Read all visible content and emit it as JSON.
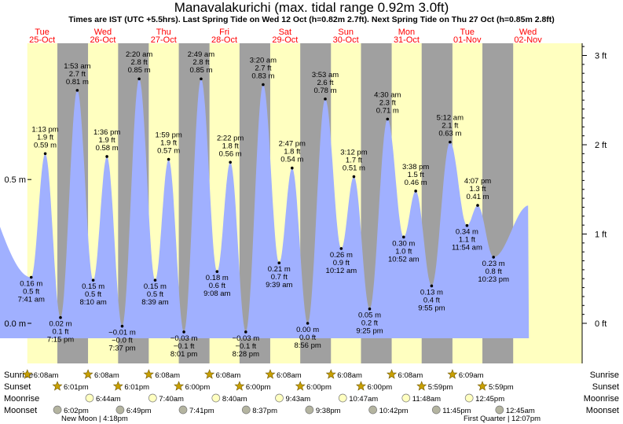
{
  "title": "Manavalakurichi (max. tidal range 0.92m 3.0ft)",
  "subtitle": "Times are IST (UTC +5.5hrs). Last Spring Tide on Wed 12 Oct (h=0.82m 2.7ft). Next Spring Tide on Thu 27 Oct (h=0.85m 2.8ft)",
  "chart_data": {
    "type": "area",
    "title": "Manavalakurichi (max. tidal range 0.92m 3.0ft)",
    "y_left_ticks": [
      {
        "value": 0.0,
        "label": "0.0 m"
      },
      {
        "value": 0.5,
        "label": "0.5 m"
      }
    ],
    "y_right_ticks": [
      {
        "value": 0,
        "label": "0 ft"
      },
      {
        "value": 1,
        "label": "1 ft"
      },
      {
        "value": 2,
        "label": "2 ft"
      },
      {
        "value": 3,
        "label": "3 ft"
      }
    ],
    "days": [
      {
        "dow": "Tue",
        "date": "25-Oct"
      },
      {
        "dow": "Wed",
        "date": "26-Oct"
      },
      {
        "dow": "Thu",
        "date": "27-Oct"
      },
      {
        "dow": "Fri",
        "date": "28-Oct"
      },
      {
        "dow": "Sat",
        "date": "29-Oct"
      },
      {
        "dow": "Sun",
        "date": "30-Oct"
      },
      {
        "dow": "Mon",
        "date": "31-Oct"
      },
      {
        "dow": "Tue",
        "date": "01-Nov"
      },
      {
        "dow": "Wed",
        "date": "02-Nov"
      }
    ],
    "tides": [
      {
        "day": 0,
        "hour": 7.683,
        "time": "7:41 am",
        "m": 0.16,
        "mt": "0.16 m",
        "ft": "0.5 ft",
        "type": "low"
      },
      {
        "day": 0,
        "hour": 13.217,
        "time": "1:13 pm",
        "m": 0.59,
        "mt": "0.59 m",
        "ft": "1.9 ft",
        "type": "high"
      },
      {
        "day": 0,
        "hour": 19.25,
        "time": "7:15 pm",
        "m": 0.02,
        "mt": "0.02 m",
        "ft": "0.1 ft",
        "type": "low"
      },
      {
        "day": 1,
        "hour": 1.883,
        "time": "1:53 am",
        "m": 0.81,
        "mt": "0.81 m",
        "ft": "2.7 ft",
        "type": "high"
      },
      {
        "day": 1,
        "hour": 8.167,
        "time": "8:10 am",
        "m": 0.15,
        "mt": "0.15 m",
        "ft": "0.5 ft",
        "type": "low"
      },
      {
        "day": 1,
        "hour": 13.6,
        "time": "1:36 pm",
        "m": 0.58,
        "mt": "0.58 m",
        "ft": "1.9 ft",
        "type": "high"
      },
      {
        "day": 1,
        "hour": 19.617,
        "time": "7:37 pm",
        "m": -0.01,
        "mt": "−0.01 m",
        "ft": "−0.0 ft",
        "type": "low"
      },
      {
        "day": 2,
        "hour": 2.333,
        "time": "2:20 am",
        "m": 0.85,
        "mt": "0.85 m",
        "ft": "2.8 ft",
        "type": "high"
      },
      {
        "day": 2,
        "hour": 8.65,
        "time": "8:39 am",
        "m": 0.15,
        "mt": "0.15 m",
        "ft": "0.5 ft",
        "type": "low"
      },
      {
        "day": 2,
        "hour": 13.983,
        "time": "1:59 pm",
        "m": 0.57,
        "mt": "0.57 m",
        "ft": "1.9 ft",
        "type": "high"
      },
      {
        "day": 2,
        "hour": 20.017,
        "time": "8:01 pm",
        "m": -0.03,
        "mt": "−0.03 m",
        "ft": "−0.1 ft",
        "type": "low"
      },
      {
        "day": 3,
        "hour": 2.817,
        "time": "2:49 am",
        "m": 0.85,
        "mt": "0.85 m",
        "ft": "2.8 ft",
        "type": "high"
      },
      {
        "day": 3,
        "hour": 9.133,
        "time": "9:08 am",
        "m": 0.18,
        "mt": "0.18 m",
        "ft": "0.6 ft",
        "type": "low"
      },
      {
        "day": 3,
        "hour": 14.367,
        "time": "2:22 pm",
        "m": 0.56,
        "mt": "0.56 m",
        "ft": "1.8 ft",
        "type": "high"
      },
      {
        "day": 3,
        "hour": 20.467,
        "time": "8:28 pm",
        "m": -0.03,
        "mt": "−0.03 m",
        "ft": "−0.1 ft",
        "type": "low"
      },
      {
        "day": 4,
        "hour": 3.333,
        "time": "3:20 am",
        "m": 0.83,
        "mt": "0.83 m",
        "ft": "2.7 ft",
        "type": "high"
      },
      {
        "day": 4,
        "hour": 9.65,
        "time": "9:39 am",
        "m": 0.21,
        "mt": "0.21 m",
        "ft": "0.7 ft",
        "type": "low"
      },
      {
        "day": 4,
        "hour": 14.783,
        "time": "2:47 pm",
        "m": 0.54,
        "mt": "0.54 m",
        "ft": "1.8 ft",
        "type": "high"
      },
      {
        "day": 4,
        "hour": 20.933,
        "time": "8:56 pm",
        "m": 0.0,
        "mt": "0.00 m",
        "ft": "0.0 ft",
        "type": "low"
      },
      {
        "day": 5,
        "hour": 3.883,
        "time": "3:53 am",
        "m": 0.78,
        "mt": "0.78 m",
        "ft": "2.6 ft",
        "type": "high"
      },
      {
        "day": 5,
        "hour": 10.2,
        "time": "10:12 am",
        "m": 0.26,
        "mt": "0.26 m",
        "ft": "0.9 ft",
        "type": "low"
      },
      {
        "day": 5,
        "hour": 15.2,
        "time": "3:12 pm",
        "m": 0.51,
        "mt": "0.51 m",
        "ft": "1.7 ft",
        "type": "high"
      },
      {
        "day": 5,
        "hour": 21.417,
        "time": "9:25 pm",
        "m": 0.05,
        "mt": "0.05 m",
        "ft": "0.2 ft",
        "type": "low"
      },
      {
        "day": 6,
        "hour": 4.5,
        "time": "4:30 am",
        "m": 0.71,
        "mt": "0.71 m",
        "ft": "2.3 ft",
        "type": "high"
      },
      {
        "day": 6,
        "hour": 10.867,
        "time": "10:52 am",
        "m": 0.3,
        "mt": "0.30 m",
        "ft": "1.0 ft",
        "type": "low"
      },
      {
        "day": 6,
        "hour": 15.633,
        "time": "3:38 pm",
        "m": 0.46,
        "mt": "0.46 m",
        "ft": "1.5 ft",
        "type": "high"
      },
      {
        "day": 6,
        "hour": 21.917,
        "time": "9:55 pm",
        "m": 0.13,
        "mt": "0.13 m",
        "ft": "0.4 ft",
        "type": "low"
      },
      {
        "day": 7,
        "hour": 5.2,
        "time": "5:12 am",
        "m": 0.63,
        "mt": "0.63 m",
        "ft": "2.1 ft",
        "type": "high"
      },
      {
        "day": 7,
        "hour": 11.9,
        "time": "11:54 am",
        "m": 0.34,
        "mt": "0.34 m",
        "ft": "1.1 ft",
        "type": "low"
      },
      {
        "day": 7,
        "hour": 16.117,
        "time": "4:07 pm",
        "m": 0.41,
        "mt": "0.41 m",
        "ft": "1.3 ft",
        "type": "high"
      },
      {
        "day": 7,
        "hour": 22.383,
        "time": "10:23 pm",
        "m": 0.23,
        "mt": "0.23 m",
        "ft": "0.8 ft",
        "type": "low"
      }
    ],
    "row_labels": [
      "Sunrise",
      "Sunset",
      "Moonrise",
      "Moonset"
    ],
    "sun_moon": {
      "sunrise": [
        {
          "day": 0,
          "hour": 6.133,
          "time": "6:08am"
        },
        {
          "day": 1,
          "hour": 6.133,
          "time": "6:08am"
        },
        {
          "day": 2,
          "hour": 6.133,
          "time": "6:08am"
        },
        {
          "day": 3,
          "hour": 6.133,
          "time": "6:08am"
        },
        {
          "day": 4,
          "hour": 6.133,
          "time": "6:08am"
        },
        {
          "day": 5,
          "hour": 6.133,
          "time": "6:08am"
        },
        {
          "day": 6,
          "hour": 6.133,
          "time": "6:08am"
        },
        {
          "day": 7,
          "hour": 6.15,
          "time": "6:09am"
        }
      ],
      "sunset": [
        {
          "day": 0,
          "hour": 18.017,
          "time": "6:01pm"
        },
        {
          "day": 1,
          "hour": 18.017,
          "time": "6:01pm"
        },
        {
          "day": 2,
          "hour": 18.0,
          "time": "6:00pm"
        },
        {
          "day": 3,
          "hour": 18.0,
          "time": "6:00pm"
        },
        {
          "day": 4,
          "hour": 18.0,
          "time": "6:00pm"
        },
        {
          "day": 5,
          "hour": 18.0,
          "time": "6:00pm"
        },
        {
          "day": 6,
          "hour": 17.983,
          "time": "5:59pm"
        },
        {
          "day": 7,
          "hour": 17.983,
          "time": "5:59pm"
        }
      ],
      "moonrise": [
        {
          "day": 1,
          "hour": 6.733,
          "time": "6:44am"
        },
        {
          "day": 2,
          "hour": 7.667,
          "time": "7:40am"
        },
        {
          "day": 3,
          "hour": 8.667,
          "time": "8:40am"
        },
        {
          "day": 4,
          "hour": 9.717,
          "time": "9:43am"
        },
        {
          "day": 5,
          "hour": 10.783,
          "time": "10:47am"
        },
        {
          "day": 6,
          "hour": 11.8,
          "time": "11:48am"
        },
        {
          "day": 7,
          "hour": 12.75,
          "time": "12:45pm"
        }
      ],
      "moonset": [
        {
          "day": 0,
          "hour": 18.033,
          "time": "6:02pm"
        },
        {
          "day": 1,
          "hour": 18.817,
          "time": "6:49pm"
        },
        {
          "day": 2,
          "hour": 19.683,
          "time": "7:41pm"
        },
        {
          "day": 3,
          "hour": 20.617,
          "time": "8:37pm"
        },
        {
          "day": 4,
          "hour": 21.633,
          "time": "9:38pm"
        },
        {
          "day": 5,
          "hour": 22.7,
          "time": "10:42pm"
        },
        {
          "day": 6,
          "hour": 23.75,
          "time": "11:45pm"
        },
        {
          "day": 8,
          "hour": 0.75,
          "time": "12:45am"
        }
      ]
    },
    "moon_phases": [
      {
        "label": "New Moon",
        "time": "4:18pm"
      },
      {
        "label": "First Quarter",
        "time": "12:07pm"
      }
    ]
  },
  "colors": {
    "night": "#a0a0a0",
    "day": "#ffffc0",
    "water": "#a0b0ff",
    "day_label": "#ff0000",
    "sun_marker": "#c8a000",
    "moonrise_marker": "#ffffc0",
    "moonset_marker": "#b4b4a0"
  }
}
